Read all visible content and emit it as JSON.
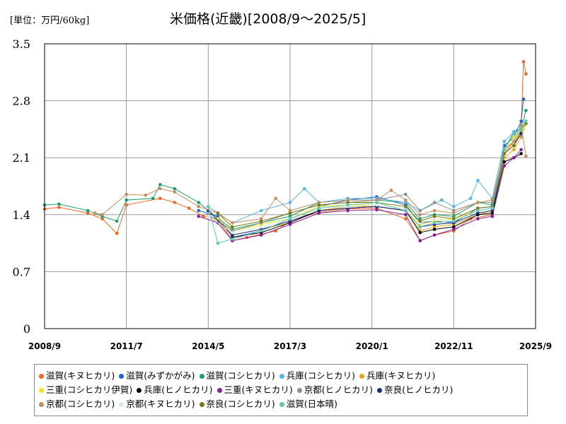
{
  "unit_label": "[単位：万円/60kg]",
  "title": "米価格(近畿)[2008/9～2025/5]",
  "chart_data": {
    "type": "line",
    "title": "米価格(近畿)[2008/9～2025/5]",
    "ylabel": "[単位：万円/60kg]",
    "xlabel": "",
    "x_ticks": [
      "2008/9",
      "2011/7",
      "2014/5",
      "2017/3",
      "2020/1",
      "2022/11",
      "2025/9"
    ],
    "y_ticks": [
      "0",
      "0.7",
      "1.4",
      "2.1",
      "2.8",
      "3.5"
    ],
    "ylim": [
      0,
      3.5
    ],
    "xlim": [
      "2008/9",
      "2025/9"
    ],
    "grid": true,
    "legend_position": "bottom",
    "series": [
      {
        "name": "滋賀(キヌヒカリ)",
        "color": "#f26522",
        "points": [
          [
            "2008/9",
            1.47
          ],
          [
            "2009/3",
            1.49
          ],
          [
            "2010/3",
            1.42
          ],
          [
            "2010/9",
            1.35
          ],
          [
            "2011/3",
            1.17
          ],
          [
            "2011/7",
            1.52
          ],
          [
            "2012/9",
            1.6
          ],
          [
            "2013/3",
            1.55
          ],
          [
            "2013/9",
            1.48
          ],
          [
            "2014/3",
            1.38
          ],
          [
            "2014/9",
            1.35
          ],
          [
            "2015/3",
            1.08
          ],
          [
            "2015/9",
            1.12
          ],
          [
            "2016/9",
            1.2
          ],
          [
            "2017/3",
            1.32
          ],
          [
            "2018/3",
            1.43
          ],
          [
            "2019/3",
            1.47
          ],
          [
            "2020/3",
            1.48
          ],
          [
            "2021/3",
            1.35
          ],
          [
            "2021/9",
            1.08
          ],
          [
            "2022/3",
            1.15
          ],
          [
            "2022/11",
            1.2
          ],
          [
            "2023/6",
            1.35
          ],
          [
            "2024/3",
            1.4
          ],
          [
            "2024/8",
            2.15
          ],
          [
            "2024/12",
            2.3
          ],
          [
            "2025/3",
            2.5
          ],
          [
            "2025/4",
            3.28
          ],
          [
            "2025/5",
            3.13
          ]
        ]
      },
      {
        "name": "滋賀(みずかがみ)",
        "color": "#1f5fd6",
        "points": [
          [
            "2014/1",
            1.45
          ],
          [
            "2014/9",
            1.38
          ],
          [
            "2015/3",
            1.12
          ],
          [
            "2016/3",
            1.2
          ],
          [
            "2017/3",
            1.35
          ],
          [
            "2018/3",
            1.5
          ],
          [
            "2019/3",
            1.58
          ],
          [
            "2020/3",
            1.62
          ],
          [
            "2021/3",
            1.52
          ],
          [
            "2021/9",
            1.3
          ],
          [
            "2022/3",
            1.32
          ],
          [
            "2022/11",
            1.3
          ],
          [
            "2023/9",
            1.48
          ],
          [
            "2024/3",
            1.5
          ],
          [
            "2024/8",
            2.25
          ],
          [
            "2024/12",
            2.35
          ],
          [
            "2025/3",
            2.55
          ],
          [
            "2025/4",
            2.82
          ]
        ]
      },
      {
        "name": "滋賀(コシヒカリ)",
        "color": "#1a9e6b",
        "points": [
          [
            "2008/9",
            1.52
          ],
          [
            "2009/3",
            1.53
          ],
          [
            "2010/3",
            1.45
          ],
          [
            "2010/9",
            1.38
          ],
          [
            "2011/3",
            1.32
          ],
          [
            "2011/7",
            1.58
          ],
          [
            "2012/6",
            1.6
          ],
          [
            "2012/9",
            1.77
          ],
          [
            "2013/3",
            1.72
          ],
          [
            "2014/1",
            1.55
          ],
          [
            "2014/5",
            1.45
          ],
          [
            "2015/3",
            1.22
          ],
          [
            "2016/3",
            1.3
          ],
          [
            "2017/3",
            1.38
          ],
          [
            "2018/3",
            1.55
          ],
          [
            "2019/3",
            1.58
          ],
          [
            "2020/3",
            1.58
          ],
          [
            "2021/3",
            1.55
          ],
          [
            "2021/9",
            1.35
          ],
          [
            "2022/3",
            1.4
          ],
          [
            "2022/11",
            1.38
          ],
          [
            "2023/9",
            1.55
          ],
          [
            "2024/3",
            1.52
          ],
          [
            "2024/8",
            2.2
          ],
          [
            "2024/12",
            2.42
          ],
          [
            "2025/3",
            2.45
          ],
          [
            "2025/5",
            2.68
          ]
        ]
      },
      {
        "name": "兵庫(コシヒカリ)",
        "color": "#5bb3e6",
        "points": [
          [
            "2014/5",
            1.5
          ],
          [
            "2015/3",
            1.3
          ],
          [
            "2016/3",
            1.45
          ],
          [
            "2017/3",
            1.55
          ],
          [
            "2017/9",
            1.72
          ],
          [
            "2018/3",
            1.55
          ],
          [
            "2019/3",
            1.6
          ],
          [
            "2020/3",
            1.6
          ],
          [
            "2021/3",
            1.55
          ],
          [
            "2021/9",
            1.45
          ],
          [
            "2022/6",
            1.58
          ],
          [
            "2022/11",
            1.5
          ],
          [
            "2023/6",
            1.6
          ],
          [
            "2023/9",
            1.82
          ],
          [
            "2024/3",
            1.6
          ],
          [
            "2024/8",
            2.3
          ],
          [
            "2024/12",
            2.42
          ],
          [
            "2025/3",
            2.5
          ],
          [
            "2025/5",
            2.55
          ]
        ]
      },
      {
        "name": "兵庫(キヌヒカリ)",
        "color": "#e8a317",
        "points": [
          [
            "2014/5",
            1.38
          ],
          [
            "2015/3",
            1.15
          ],
          [
            "2016/3",
            1.22
          ],
          [
            "2017/3",
            1.3
          ],
          [
            "2018/3",
            1.45
          ],
          [
            "2019/3",
            1.5
          ],
          [
            "2020/3",
            1.5
          ],
          [
            "2021/3",
            1.45
          ],
          [
            "2021/9",
            1.2
          ],
          [
            "2022/3",
            1.25
          ],
          [
            "2022/11",
            1.28
          ],
          [
            "2023/9",
            1.4
          ],
          [
            "2024/3",
            1.45
          ],
          [
            "2024/8",
            2.1
          ],
          [
            "2024/12",
            2.2
          ],
          [
            "2025/3",
            2.35
          ],
          [
            "2025/5",
            2.52
          ]
        ]
      },
      {
        "name": "三重(コシヒカリ伊賀)",
        "color": "#f5e31b",
        "points": [
          [
            "2014/9",
            1.35
          ],
          [
            "2015/3",
            1.2
          ],
          [
            "2016/3",
            1.28
          ],
          [
            "2017/3",
            1.35
          ],
          [
            "2018/3",
            1.5
          ],
          [
            "2019/3",
            1.52
          ],
          [
            "2020/3",
            1.52
          ],
          [
            "2021/3",
            1.48
          ],
          [
            "2021/9",
            1.28
          ],
          [
            "2022/3",
            1.32
          ],
          [
            "2022/11",
            1.35
          ],
          [
            "2023/9",
            1.45
          ],
          [
            "2024/3",
            1.48
          ],
          [
            "2024/8",
            2.2
          ],
          [
            "2024/12",
            2.35
          ],
          [
            "2025/3",
            2.4
          ],
          [
            "2025/5",
            2.52
          ]
        ]
      },
      {
        "name": "兵庫(ヒノヒカリ)",
        "color": "#000000",
        "points": [
          [
            "2015/3",
            1.12
          ],
          [
            "2016/3",
            1.18
          ],
          [
            "2017/3",
            1.3
          ],
          [
            "2018/3",
            1.45
          ],
          [
            "2019/3",
            1.48
          ],
          [
            "2020/3",
            1.5
          ],
          [
            "2021/3",
            1.45
          ],
          [
            "2021/9",
            1.18
          ],
          [
            "2022/3",
            1.22
          ],
          [
            "2022/11",
            1.25
          ],
          [
            "2023/9",
            1.4
          ],
          [
            "2024/3",
            1.42
          ],
          [
            "2024/8",
            2.05
          ],
          [
            "2024/12",
            2.1
          ],
          [
            "2025/3",
            2.15
          ]
        ]
      },
      {
        "name": "三重(キヌヒカリ)",
        "color": "#8a1f9e",
        "points": [
          [
            "2014/1",
            1.38
          ],
          [
            "2014/9",
            1.3
          ],
          [
            "2015/3",
            1.08
          ],
          [
            "2016/3",
            1.15
          ],
          [
            "2017/3",
            1.28
          ],
          [
            "2018/3",
            1.42
          ],
          [
            "2019/3",
            1.45
          ],
          [
            "2020/3",
            1.46
          ],
          [
            "2021/3",
            1.4
          ],
          [
            "2021/9",
            1.08
          ],
          [
            "2022/3",
            1.15
          ],
          [
            "2022/11",
            1.22
          ],
          [
            "2023/9",
            1.35
          ],
          [
            "2024/3",
            1.38
          ],
          [
            "2024/8",
            2.0
          ],
          [
            "2024/12",
            2.1
          ],
          [
            "2025/3",
            2.2
          ]
        ]
      },
      {
        "name": "京都(ヒノヒカリ)",
        "color": "#8c8c8c",
        "points": [
          [
            "2014/5",
            1.4
          ],
          [
            "2015/3",
            1.2
          ],
          [
            "2016/3",
            1.3
          ],
          [
            "2017/3",
            1.42
          ],
          [
            "2018/3",
            1.52
          ],
          [
            "2019/3",
            1.55
          ],
          [
            "2020/3",
            1.58
          ],
          [
            "2021/3",
            1.65
          ],
          [
            "2021/9",
            1.45
          ],
          [
            "2022/3",
            1.55
          ],
          [
            "2022/11",
            1.45
          ],
          [
            "2023/9",
            1.55
          ],
          [
            "2024/3",
            1.55
          ],
          [
            "2024/8",
            2.2
          ],
          [
            "2024/12",
            2.3
          ],
          [
            "2025/3",
            2.38
          ]
        ]
      },
      {
        "name": "奈良(ヒノヒカリ)",
        "color": "#1b2a7a",
        "points": [
          [
            "2014/5",
            1.45
          ],
          [
            "2015/3",
            1.15
          ],
          [
            "2016/3",
            1.22
          ],
          [
            "2017/3",
            1.32
          ],
          [
            "2018/3",
            1.45
          ],
          [
            "2019/3",
            1.48
          ],
          [
            "2020/3",
            1.5
          ],
          [
            "2021/3",
            1.45
          ],
          [
            "2021/9",
            1.25
          ],
          [
            "2022/3",
            1.28
          ],
          [
            "2022/11",
            1.3
          ],
          [
            "2023/9",
            1.42
          ],
          [
            "2024/3",
            1.45
          ],
          [
            "2024/8",
            2.15
          ],
          [
            "2024/12",
            2.25
          ],
          [
            "2025/3",
            2.4
          ]
        ]
      },
      {
        "name": "京都(コシヒカリ)",
        "color": "#c09060",
        "points": [
          [
            "2010/6",
            1.42
          ],
          [
            "2010/9",
            1.4
          ],
          [
            "2011/7",
            1.65
          ],
          [
            "2012/3",
            1.64
          ],
          [
            "2012/9",
            1.72
          ],
          [
            "2013/3",
            1.68
          ],
          [
            "2014/1",
            1.5
          ],
          [
            "2014/9",
            1.42
          ],
          [
            "2015/3",
            1.3
          ],
          [
            "2016/3",
            1.35
          ],
          [
            "2016/9",
            1.6
          ],
          [
            "2017/3",
            1.45
          ],
          [
            "2018/3",
            1.55
          ],
          [
            "2019/3",
            1.58
          ],
          [
            "2020/3",
            1.58
          ],
          [
            "2020/9",
            1.7
          ],
          [
            "2021/3",
            1.58
          ],
          [
            "2021/9",
            1.4
          ],
          [
            "2022/3",
            1.45
          ],
          [
            "2022/11",
            1.42
          ],
          [
            "2023/9",
            1.55
          ],
          [
            "2024/3",
            1.58
          ],
          [
            "2024/8",
            2.2
          ],
          [
            "2024/12",
            2.3
          ],
          [
            "2025/3",
            2.5
          ],
          [
            "2025/5",
            2.12
          ]
        ]
      },
      {
        "name": "京都(キヌヒカリ)",
        "color": "#d6e9f5",
        "points": [
          [
            "2014/5",
            1.38
          ],
          [
            "2015/3",
            1.18
          ],
          [
            "2016/3",
            1.25
          ],
          [
            "2017/3",
            1.35
          ],
          [
            "2018/3",
            1.48
          ],
          [
            "2019/3",
            1.5
          ],
          [
            "2020/3",
            1.52
          ],
          [
            "2021/3",
            1.48
          ],
          [
            "2021/9",
            1.3
          ],
          [
            "2022/3",
            1.35
          ],
          [
            "2022/11",
            1.32
          ],
          [
            "2023/9",
            1.45
          ],
          [
            "2024/3",
            1.48
          ]
        ]
      },
      {
        "name": "奈良(コシヒカリ)",
        "color": "#7a7a10",
        "points": [
          [
            "2014/9",
            1.42
          ],
          [
            "2015/3",
            1.25
          ],
          [
            "2016/3",
            1.32
          ],
          [
            "2017/3",
            1.42
          ],
          [
            "2018/3",
            1.52
          ],
          [
            "2019/3",
            1.55
          ],
          [
            "2020/3",
            1.55
          ],
          [
            "2021/3",
            1.5
          ],
          [
            "2021/9",
            1.32
          ],
          [
            "2022/3",
            1.38
          ],
          [
            "2022/11",
            1.35
          ],
          [
            "2023/9",
            1.48
          ],
          [
            "2024/3",
            1.5
          ],
          [
            "2024/8",
            2.15
          ],
          [
            "2024/12",
            2.25
          ],
          [
            "2025/3",
            2.45
          ],
          [
            "2025/5",
            2.52
          ]
        ]
      },
      {
        "name": "滋賀(日本晴)",
        "color": "#5ec9b0",
        "points": [
          [
            "2014/5",
            1.5
          ],
          [
            "2014/9",
            1.05
          ],
          [
            "2015/3",
            1.1
          ],
          [
            "2016/3",
            1.2
          ],
          [
            "2017/3",
            1.35
          ],
          [
            "2018/3",
            1.48
          ],
          [
            "2019/3",
            1.52
          ],
          [
            "2020/3",
            1.55
          ],
          [
            "2021/3",
            1.45
          ],
          [
            "2021/9",
            1.25
          ],
          [
            "2022/3",
            1.3
          ],
          [
            "2022/11",
            1.32
          ],
          [
            "2023/9",
            1.45
          ],
          [
            "2024/3",
            1.48
          ],
          [
            "2024/8",
            2.2
          ],
          [
            "2024/12",
            2.4
          ],
          [
            "2025/3",
            2.45
          ],
          [
            "2025/5",
            2.55
          ]
        ]
      }
    ]
  }
}
